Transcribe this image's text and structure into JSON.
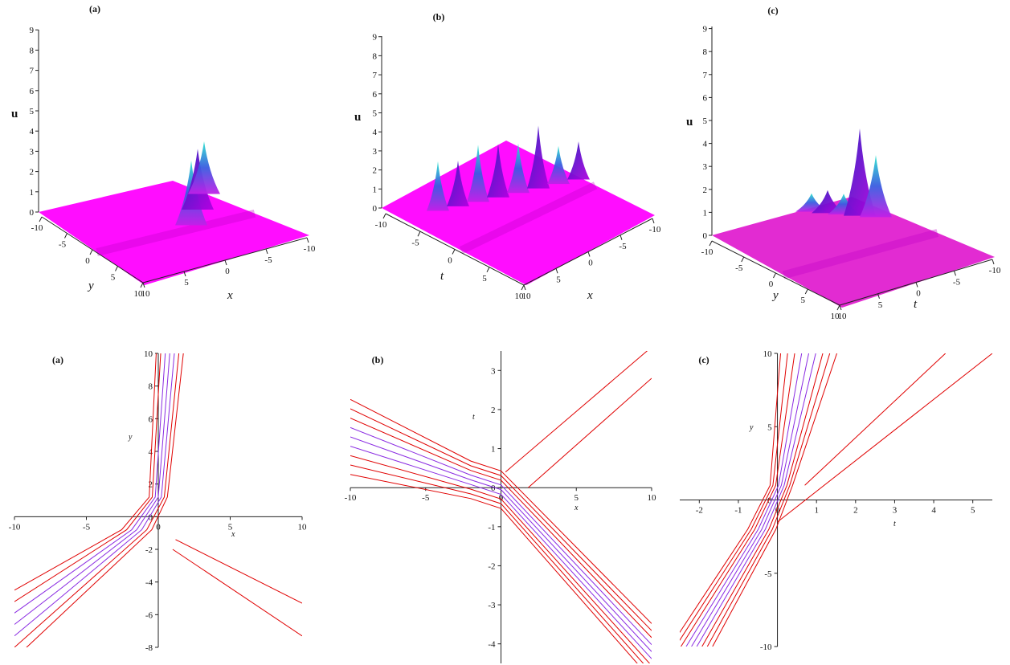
{
  "chart_data": [
    {
      "type": "surface",
      "panel_label": "(a)",
      "zlabel": "u",
      "axis_labels": [
        "y",
        "x"
      ],
      "z_ticks": [
        "0",
        "1",
        "2",
        "3",
        "4",
        "5",
        "6",
        "7",
        "8",
        "9"
      ],
      "y_ticks": [
        "-10",
        "-5",
        "0",
        "5",
        "10"
      ],
      "x_ticks": [
        "10",
        "5",
        "0",
        "-5",
        "-10"
      ],
      "zlim": [
        0,
        9
      ],
      "peaks_u": [
        3.2,
        3.0,
        2.6
      ],
      "surface_color": "#ff00ff",
      "peak_color": "#2ec4d6"
    },
    {
      "type": "surface",
      "panel_label": "(b)",
      "zlabel": "u",
      "axis_labels": [
        "t",
        "x"
      ],
      "z_ticks": [
        "0",
        "1",
        "2",
        "3",
        "4",
        "5",
        "6",
        "7",
        "8",
        "9"
      ],
      "t_ticks": [
        "-10",
        "-5",
        "0",
        "5",
        "10"
      ],
      "x_ticks": [
        "10",
        "5",
        "0",
        "-5",
        "-10"
      ],
      "zlim": [
        0,
        9
      ],
      "peaks_u": [
        2.6,
        2.4,
        3.0,
        2.8,
        2.6,
        3.3,
        2.0,
        2.0
      ],
      "surface_color": "#ff00ff",
      "peak_color": "#2ec4d6"
    },
    {
      "type": "surface",
      "panel_label": "(c)",
      "zlabel": "u",
      "axis_labels": [
        "y",
        "t"
      ],
      "z_ticks": [
        "0",
        "1",
        "2",
        "3",
        "4",
        "5",
        "6",
        "7",
        "8",
        "9"
      ],
      "y_ticks": [
        "-10",
        "-5",
        "0",
        "5",
        "10"
      ],
      "t_ticks": [
        "10",
        "5",
        "0",
        "-5",
        "-10"
      ],
      "zlim": [
        0,
        9
      ],
      "peaks_u": [
        0.8,
        1.0,
        0.9,
        3.8,
        2.7
      ],
      "surface_color": "#e020d0",
      "peak_color": "#2ec4d6"
    },
    {
      "type": "contour",
      "panel_label": "(a)",
      "xlabel": "x",
      "ylabel": "y",
      "xlim": [
        -10,
        10
      ],
      "ylim": [
        -8,
        10
      ],
      "x_ticks": [
        "-10",
        "-5",
        "0",
        "5",
        "10"
      ],
      "y_ticks": [
        "-8",
        "-6",
        "-4",
        "-2",
        "0",
        "2",
        "4",
        "6",
        "8",
        "10"
      ],
      "line_color": "#e00000",
      "inner_color": "#8a2be2"
    },
    {
      "type": "contour",
      "panel_label": "(b)",
      "xlabel": "x",
      "ylabel": "t",
      "xlim": [
        -10,
        10
      ],
      "ylim": [
        -4.5,
        3.5
      ],
      "x_ticks": [
        "-10",
        "-5",
        "0",
        "5",
        "10"
      ],
      "y_ticks": [
        "-4",
        "-3",
        "-2",
        "-1",
        "0",
        "1",
        "2",
        "3"
      ],
      "line_color": "#e00000",
      "inner_color": "#8a2be2"
    },
    {
      "type": "contour",
      "panel_label": "(c)",
      "xlabel": "t",
      "ylabel": "y",
      "xlim": [
        -2.5,
        5.5
      ],
      "ylim": [
        -10,
        10
      ],
      "x_ticks": [
        "-2",
        "-1",
        "0",
        "1",
        "2",
        "3",
        "4",
        "5"
      ],
      "y_ticks": [
        "-10",
        "-5",
        "0",
        "5",
        "10"
      ],
      "line_color": "#e00000",
      "inner_color": "#8a2be2"
    }
  ]
}
